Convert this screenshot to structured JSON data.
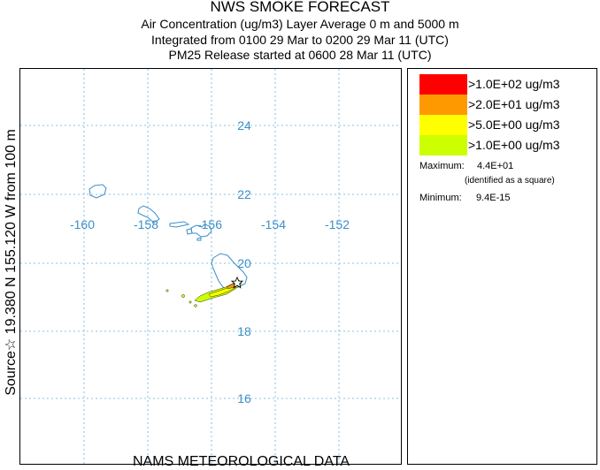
{
  "header": {
    "title": "NWS SMOKE FORECAST",
    "line2": "Air Concentration (ug/m3) Layer Average    0 m and  5000 m",
    "line3": "Integrated from 0100 29 Mar to 0200 29 Mar 11 (UTC)",
    "line4": "PM25 Release started at 0600 28 Mar 11 (UTC)"
  },
  "source_label": "Source☆ 19.380  N 155.120  W     from   100 m",
  "footer": "NAMS METEOROLOGICAL DATA",
  "map": {
    "lat_labels": [
      "24",
      "22",
      "20",
      "18",
      "16"
    ],
    "lon_labels": [
      "-160",
      "-158",
      "-156",
      "-154",
      "-152"
    ],
    "gridline_color": "#6aaed6",
    "coast_color": "#3a8fc8",
    "source_marker": "star-icon"
  },
  "legend": {
    "levels": [
      {
        "label": ">1.0E+02 ug/m3",
        "color": "#ff0000"
      },
      {
        "label": ">2.0E+01 ug/m3",
        "color": "#ff9900"
      },
      {
        "label": ">5.0E+00 ug/m3",
        "color": "#ffff00"
      },
      {
        "label": ">1.0E+00 ug/m3",
        "color": "#ccff00"
      }
    ],
    "maximum_label": "Maximum:",
    "maximum_value": "4.4E+01",
    "maximum_note": "(identified as a square)",
    "minimum_label": "Minimum:",
    "minimum_value": "9.4E-15"
  }
}
